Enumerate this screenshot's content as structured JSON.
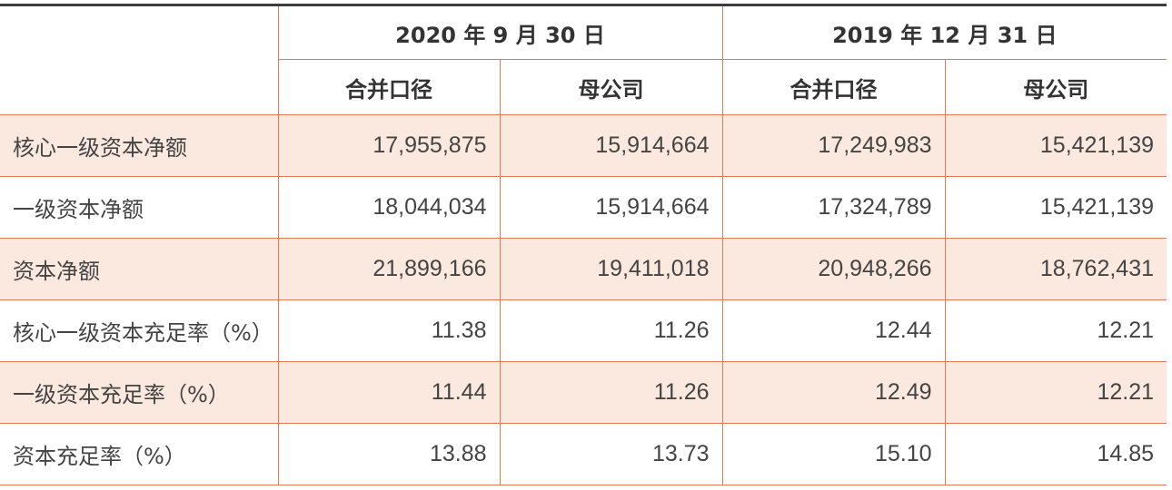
{
  "header": {
    "period1": "2020 年 9 月 30 日",
    "period2": "2019 年 12 月 31 日",
    "sub": [
      "合并口径",
      "母公司",
      "合并口径",
      "母公司"
    ]
  },
  "rows": [
    {
      "label": "核心一级资本净额",
      "values": [
        "17,955,875",
        "15,914,664",
        "17,249,983",
        "15,421,139"
      ]
    },
    {
      "label": "一级资本净额",
      "values": [
        "18,044,034",
        "15,914,664",
        "17,324,789",
        "15,421,139"
      ]
    },
    {
      "label": "资本净额",
      "values": [
        "21,899,166",
        "19,411,018",
        "20,948,266",
        "18,762,431"
      ]
    },
    {
      "label": "核心一级资本充足率（%）",
      "values": [
        "11.38",
        "11.26",
        "12.44",
        "12.21"
      ]
    },
    {
      "label": "一级资本充足率（%）",
      "values": [
        "11.44",
        "11.26",
        "12.49",
        "12.21"
      ]
    },
    {
      "label": "资本充足率（%）",
      "values": [
        "13.88",
        "13.73",
        "15.10",
        "14.85"
      ]
    }
  ]
}
